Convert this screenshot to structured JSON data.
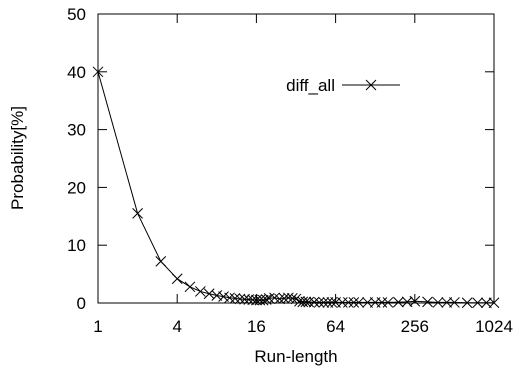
{
  "chart_data": {
    "type": "line",
    "title": "",
    "xlabel": "Run-length",
    "ylabel": "Probability[%]",
    "x_scale": "log2",
    "xlim": [
      1,
      1024
    ],
    "ylim": [
      0,
      50
    ],
    "x_ticks": [
      1,
      4,
      16,
      64,
      256,
      1024
    ],
    "x_tick_labels": [
      "1",
      "4",
      "16",
      "64",
      "256",
      "1024"
    ],
    "y_ticks": [
      0,
      10,
      20,
      30,
      40,
      50
    ],
    "y_tick_labels": [
      "0",
      "10",
      "20",
      "30",
      "40",
      "50"
    ],
    "grid": false,
    "legend": {
      "position": "top-right",
      "entries": [
        "diff_all"
      ]
    },
    "series": [
      {
        "name": "diff_all",
        "marker": "x",
        "color": "#000000",
        "x": [
          1,
          2,
          3,
          4,
          5,
          6,
          7,
          8,
          9,
          10,
          11,
          12,
          13,
          14,
          15,
          16,
          17,
          18,
          19,
          20,
          22,
          24,
          26,
          28,
          30,
          32,
          34,
          36,
          38,
          40,
          44,
          48,
          52,
          56,
          60,
          64,
          72,
          80,
          88,
          96,
          112,
          128,
          144,
          160,
          192,
          224,
          256,
          320,
          384,
          448,
          512,
          640,
          768,
          896,
          1024
        ],
        "y": [
          40,
          15.5,
          7.2,
          4.2,
          2.8,
          2.0,
          1.6,
          1.3,
          1.1,
          0.9,
          0.8,
          0.7,
          0.65,
          0.6,
          0.55,
          0.5,
          0.5,
          0.5,
          0.6,
          0.8,
          0.9,
          0.7,
          0.8,
          0.9,
          0.8,
          0.7,
          0.3,
          0.2,
          0.2,
          0.15,
          0.15,
          0.1,
          0.1,
          0.1,
          0.1,
          0.1,
          0.1,
          0.1,
          0.1,
          0.1,
          0.1,
          0.1,
          0.1,
          0.1,
          0.15,
          0.2,
          0.3,
          0.2,
          0.1,
          0.1,
          0.1,
          0.05,
          0.05,
          0.05,
          0.05
        ]
      }
    ]
  }
}
